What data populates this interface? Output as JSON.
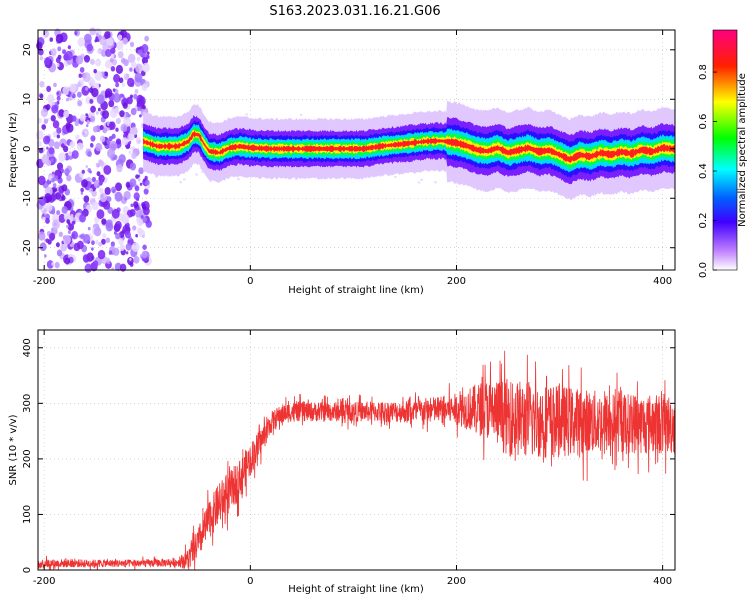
{
  "title": "S163.2023.031.16.21.G06",
  "chart_data": [
    {
      "type": "heatmap",
      "xlabel": "Height of straight line (km)",
      "ylabel": "Frequency (Hz)",
      "xlim": [
        -206,
        412
      ],
      "ylim": [
        -24.5,
        24
      ],
      "xticks": [
        -200,
        0,
        200,
        400
      ],
      "yticks": [
        -20,
        -10,
        0,
        10,
        20
      ],
      "grid": true,
      "colorbar": {
        "label": "Normalized spectral amplitude",
        "range": [
          0,
          0.97
        ],
        "ticks": [
          0.0,
          0.2,
          0.4,
          0.6,
          0.8
        ],
        "tick_labels": [
          "0.0",
          "0.2",
          "0.4",
          "0.6",
          "0.8"
        ],
        "colors": [
          "#ffffff",
          "#b200ff",
          "#3a00ff",
          "#00e6ff",
          "#00ff00",
          "#ffff00",
          "#ff3300",
          "#ff0080"
        ]
      },
      "noise_region_x": [
        -206,
        -98
      ],
      "ridge": {
        "x": [
          -104,
          -90,
          -80,
          -70,
          -60,
          -55,
          -50,
          -45,
          -40,
          -30,
          -20,
          -10,
          0,
          20,
          50,
          80,
          110,
          130,
          150,
          170,
          185,
          200,
          210,
          220,
          230,
          240,
          250,
          260,
          270,
          280,
          290,
          300,
          310,
          320,
          330,
          340,
          350,
          360,
          370,
          380,
          390,
          400,
          412
        ],
        "y": [
          1.5,
          0.5,
          0.5,
          0.5,
          1.5,
          3.0,
          2.8,
          1.0,
          -0.5,
          -0.8,
          0.2,
          0.5,
          0.2,
          0.0,
          0.0,
          0.0,
          0.0,
          0.6,
          1.0,
          1.5,
          1.6,
          1.2,
          0.6,
          -0.2,
          -0.5,
          0.2,
          -0.8,
          -0.3,
          0.2,
          -0.6,
          -0.3,
          -1.2,
          -2.2,
          -1.2,
          -1.6,
          -0.8,
          -1.2,
          -0.6,
          -1.0,
          -0.2,
          -0.6,
          0.2,
          -0.1
        ]
      }
    },
    {
      "type": "line",
      "xlabel": "Height of straight line (km)",
      "ylabel": "SNR (10 * v/v)",
      "xlim": [
        -206,
        412
      ],
      "ylim": [
        0,
        432
      ],
      "xticks": [
        -200,
        0,
        200,
        400
      ],
      "yticks": [
        0,
        100,
        200,
        300,
        400
      ],
      "grid": true,
      "color": "#ee3333",
      "series": [
        {
          "x": [
            -206,
            -150,
            -100,
            -70,
            -60,
            -50,
            -40,
            -30,
            -20,
            -10,
            0,
            10,
            20,
            30,
            40,
            60,
            100,
            150,
            200,
            230,
            250,
            270,
            300,
            350,
            412
          ],
          "y": [
            12,
            12,
            12,
            14,
            20,
            50,
            90,
            120,
            140,
            165,
            200,
            230,
            265,
            280,
            285,
            285,
            285,
            285,
            290,
            290,
            275,
            270,
            268,
            265,
            262
          ],
          "noise": [
            8,
            7,
            7,
            8,
            20,
            30,
            35,
            38,
            38,
            35,
            30,
            25,
            20,
            18,
            18,
            18,
            18,
            20,
            28,
            55,
            70,
            70,
            65,
            55,
            55
          ]
        }
      ]
    }
  ]
}
